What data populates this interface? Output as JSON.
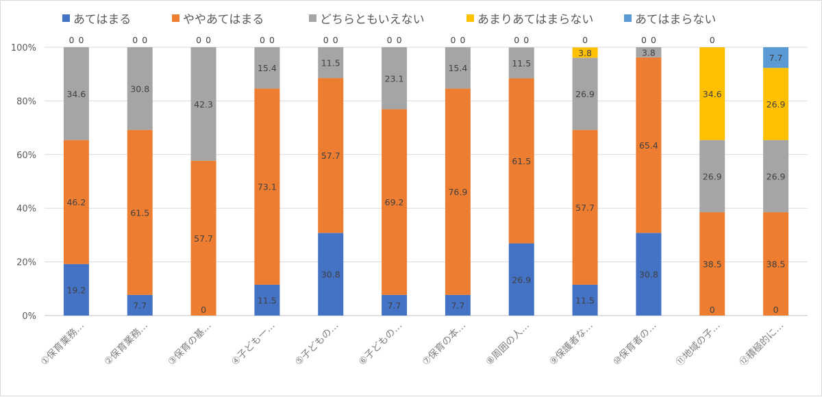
{
  "chart_data": {
    "type": "bar",
    "stacked": "percent",
    "categories": [
      "①保育業務…",
      "②保育業務…",
      "③保育の基…",
      "④子ども一…",
      "⑤子どもの…",
      "⑥子どもの…",
      "⑦保育の本…",
      "⑧周囲の人…",
      "⑨保護者な…",
      "⑩保育者の…",
      "⑪地域の子…",
      "⑫積極的に…"
    ],
    "series": [
      {
        "name": "あてはまる",
        "color": "#4472C4",
        "values": [
          19.2,
          7.7,
          0,
          11.5,
          30.8,
          7.7,
          7.7,
          26.9,
          11.5,
          30.8,
          0,
          0
        ]
      },
      {
        "name": "ややあてはまる",
        "color": "#ED7D31",
        "values": [
          46.2,
          61.5,
          57.7,
          73.1,
          57.7,
          69.2,
          76.9,
          61.5,
          57.7,
          65.4,
          38.5,
          38.5
        ]
      },
      {
        "name": "どちらともいえない",
        "color": "#A5A5A5",
        "values": [
          34.6,
          30.8,
          42.3,
          15.4,
          11.5,
          23.1,
          15.4,
          11.5,
          26.9,
          3.8,
          26.9,
          26.9
        ]
      },
      {
        "name": "あまりあてはまらない",
        "color": "#FFC000",
        "values": [
          0,
          0,
          0,
          0,
          0,
          0,
          0,
          0,
          3.8,
          0,
          34.6,
          26.9
        ]
      },
      {
        "name": "あてはまらない",
        "color": "#5B9BD5",
        "values": [
          0,
          0,
          0,
          0,
          0,
          0,
          0,
          0,
          0,
          0,
          0,
          7.7
        ]
      }
    ],
    "yticks": [
      "0%",
      "20%",
      "40%",
      "60%",
      "80%",
      "100%"
    ],
    "ylim": [
      0,
      100
    ],
    "grid": true,
    "legend": "top",
    "data_labels": true
  }
}
